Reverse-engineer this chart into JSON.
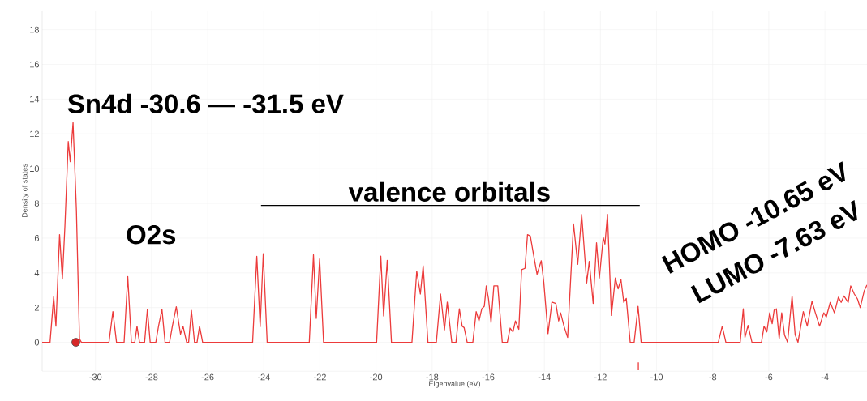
{
  "chart_data": {
    "type": "line",
    "xlabel": "Eigenvalue (eV)",
    "ylabel": "Density of states",
    "xlim": [
      -31.9,
      -2.5
    ],
    "ylim": [
      -1.65,
      19.1
    ],
    "xticks": [
      -30,
      -28,
      -26,
      -24,
      -22,
      -20,
      -18,
      -16,
      -14,
      -12,
      -10,
      -8,
      -6,
      -4
    ],
    "yticks": [
      0,
      2,
      4,
      6,
      8,
      10,
      12,
      14,
      16,
      18
    ],
    "grid": true,
    "marker": "none",
    "annotations": [
      "Sn4d -30.6 — -31.5 eV",
      "O2s",
      "valence orbitals",
      "HOMO -10.65 eV",
      "LUMO -7.63 eV"
    ],
    "series": [
      {
        "color": "#ec3b3b",
        "x": [
          -31.9,
          -31.62,
          -31.49,
          -31.41,
          -31.28,
          -31.18,
          -31.09,
          -30.97,
          -30.9,
          -30.8,
          -30.68,
          -30.57,
          -30.5,
          -29.52,
          -29.38,
          -29.25,
          -28.98,
          -28.85,
          -28.72,
          -28.6,
          -28.52,
          -28.43,
          -28.25,
          -28.15,
          -28.05,
          -27.85,
          -27.75,
          -27.63,
          -27.52,
          -27.36,
          -27.26,
          -27.12,
          -26.97,
          -26.88,
          -26.75,
          -26.68,
          -26.58,
          -26.47,
          -26.38,
          -26.29,
          -26.18,
          -24.4,
          -24.25,
          -24.13,
          -24.02,
          -23.88,
          -22.38,
          -22.23,
          -22.13,
          -22.01,
          -21.87,
          -19.98,
          -19.83,
          -19.73,
          -19.6,
          -19.45,
          -18.72,
          -18.55,
          -18.42,
          -18.32,
          -18.15,
          -17.85,
          -17.7,
          -17.56,
          -17.46,
          -17.3,
          -17.15,
          -17.03,
          -16.93,
          -16.86,
          -16.75,
          -16.55,
          -16.43,
          -16.33,
          -16.23,
          -16.14,
          -16.07,
          -15.99,
          -15.9,
          -15.8,
          -15.66,
          -15.5,
          -15.32,
          -15.22,
          -15.12,
          -15.03,
          -14.91,
          -14.81,
          -14.69,
          -14.6,
          -14.5,
          -14.38,
          -14.26,
          -14.11,
          -14.02,
          -13.87,
          -13.73,
          -13.59,
          -13.49,
          -13.42,
          -13.3,
          -13.17,
          -12.96,
          -12.81,
          -12.67,
          -12.49,
          -12.4,
          -12.26,
          -12.14,
          -12.04,
          -11.9,
          -11.84,
          -11.75,
          -11.61,
          -11.47,
          -11.37,
          -11.27,
          -11.17,
          -11.08,
          -10.94,
          -10.8,
          -10.66,
          -10.55,
          -7.8,
          -7.66,
          -7.53,
          -7.02,
          -6.91,
          -6.85,
          -6.74,
          -6.6,
          -6.26,
          -6.17,
          -6.07,
          -5.97,
          -5.88,
          -5.81,
          -5.73,
          -5.63,
          -5.54,
          -5.44,
          -5.33,
          -5.17,
          -5.06,
          -4.96,
          -4.77,
          -4.63,
          -4.46,
          -4.34,
          -4.19,
          -4.04,
          -3.95,
          -3.81,
          -3.66,
          -3.52,
          -3.42,
          -3.32,
          -3.17,
          -3.08,
          -2.95,
          -2.84,
          -2.74,
          -2.6,
          -2.5
        ],
        "values": [
          0,
          0,
          2.62,
          0.93,
          6.2,
          3.64,
          6.67,
          11.56,
          10.4,
          12.65,
          7.6,
          0.2,
          0,
          0,
          1.77,
          0,
          0,
          3.79,
          0,
          0,
          0.93,
          0,
          0,
          1.9,
          0,
          0,
          0.96,
          1.9,
          0,
          0,
          0.93,
          2.05,
          0.47,
          0.93,
          0,
          0,
          1.84,
          0,
          0,
          0.93,
          0,
          0,
          4.95,
          0.9,
          5.1,
          0,
          0,
          5.04,
          1.38,
          4.8,
          0,
          0,
          4.96,
          1.52,
          4.72,
          0,
          0,
          4.1,
          2.78,
          4.41,
          0,
          0,
          2.78,
          0.72,
          2.32,
          0,
          0,
          1.93,
          0.93,
          0.85,
          0,
          0,
          1.77,
          1.23,
          1.93,
          2.08,
          3.25,
          2.5,
          1.14,
          3.25,
          3.25,
          0,
          0,
          0.82,
          0.6,
          1.23,
          0.75,
          4.18,
          4.26,
          6.2,
          6.12,
          5.0,
          3.92,
          4.7,
          3.45,
          0.5,
          2.32,
          2.24,
          1.23,
          1.7,
          0.93,
          0.28,
          6.82,
          4.49,
          7.37,
          3.42,
          4.66,
          2.24,
          5.73,
          3.7,
          6.04,
          5.66,
          7.37,
          1.55,
          3.7,
          3.08,
          3.62,
          2.3,
          2.53,
          0,
          0,
          2.07,
          0,
          0,
          0.93,
          0,
          0,
          1.93,
          0.28,
          0.98,
          0,
          0,
          0.93,
          0.6,
          1.7,
          1.07,
          1.85,
          1.93,
          0.2,
          1.7,
          0.43,
          0,
          2.67,
          0.43,
          0,
          1.77,
          0.93,
          2.36,
          1.7,
          0.93,
          1.7,
          1.46,
          2.3,
          1.7,
          2.6,
          2.3,
          2.67,
          2.3,
          3.25,
          2.78,
          2.5,
          2.0,
          2.95,
          3.3
        ]
      },
      {
        "type": "scatter",
        "color": "#d62728",
        "marker": "circle",
        "x": [
          -30.7
        ],
        "values": [
          0
        ]
      },
      {
        "type": "line",
        "color": "#000000",
        "x": [
          -24.1,
          -10.6
        ],
        "values": [
          7.88,
          7.88
        ]
      },
      {
        "type": "line",
        "color": "#ec3b3b",
        "x": [
          -10.65,
          -10.65
        ],
        "values": [
          -1.6,
          -1.15
        ]
      }
    ]
  }
}
